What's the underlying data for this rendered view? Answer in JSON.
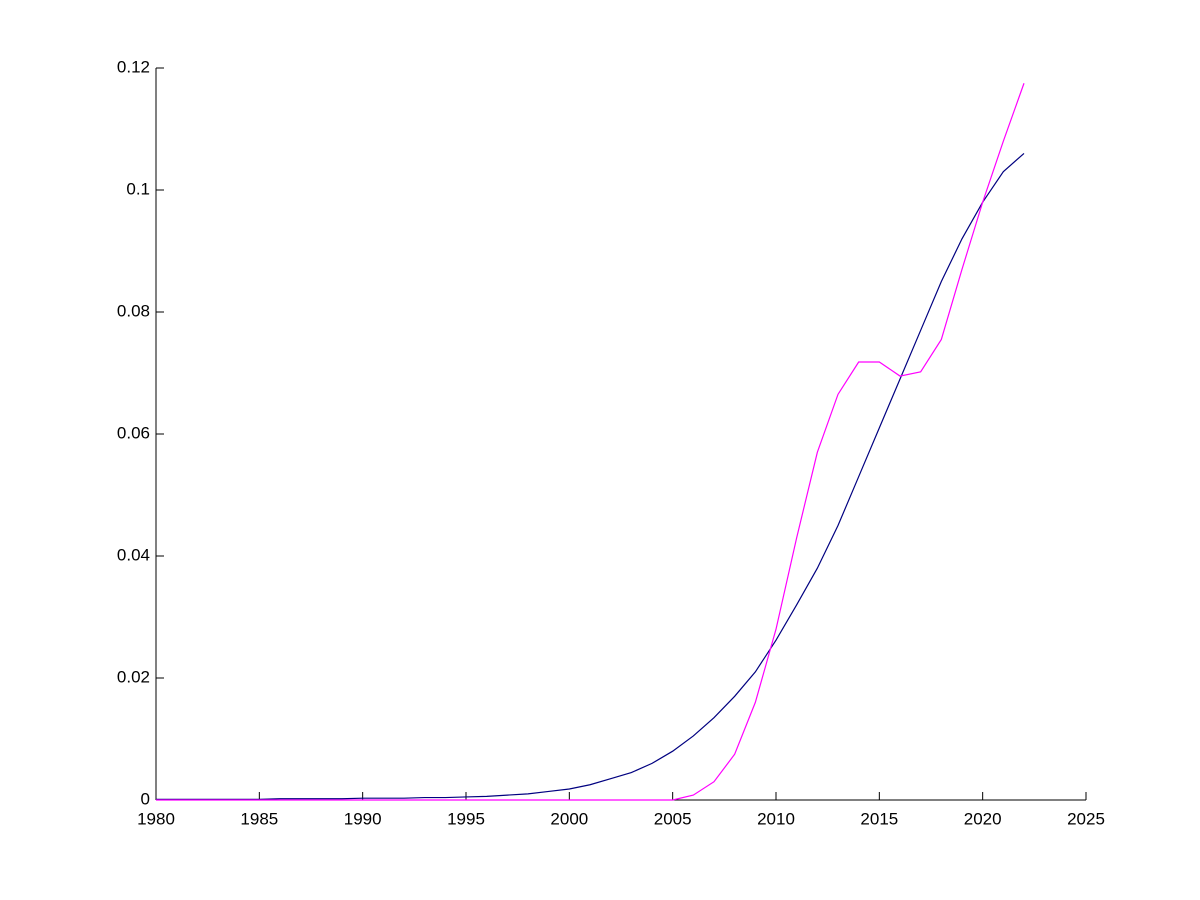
{
  "chart_data": {
    "type": "line",
    "x": [
      1980,
      1981,
      1982,
      1983,
      1984,
      1985,
      1986,
      1987,
      1988,
      1989,
      1990,
      1991,
      1992,
      1993,
      1994,
      1995,
      1996,
      1997,
      1998,
      1999,
      2000,
      2001,
      2002,
      2003,
      2004,
      2005,
      2006,
      2007,
      2008,
      2009,
      2010,
      2011,
      2012,
      2013,
      2014,
      2015,
      2016,
      2017,
      2018,
      2019,
      2020,
      2021,
      2022
    ],
    "series": [
      {
        "color": "#000080",
        "values": [
          0.0001,
          0.0001,
          0.0001,
          0.0001,
          0.0001,
          0.0001,
          0.0002,
          0.0002,
          0.0002,
          0.0002,
          0.0003,
          0.0003,
          0.0003,
          0.0004,
          0.0004,
          0.0005,
          0.0006,
          0.0008,
          0.001,
          0.0014,
          0.0018,
          0.0025,
          0.0035,
          0.0045,
          0.006,
          0.008,
          0.0105,
          0.0135,
          0.017,
          0.021,
          0.0262,
          0.032,
          0.038,
          0.045,
          0.053,
          0.061,
          0.069,
          0.077,
          0.085,
          0.092,
          0.098,
          0.103,
          0.106
        ]
      },
      {
        "color": "#ff00ff",
        "values": [
          0,
          0,
          0,
          0,
          0,
          0,
          0,
          0,
          0,
          0,
          0,
          0,
          0,
          0,
          0,
          0,
          0,
          0,
          0,
          0,
          0,
          0,
          0,
          0,
          0,
          0,
          0.0008,
          0.003,
          0.0075,
          0.016,
          0.028,
          0.043,
          0.057,
          0.0665,
          0.0718,
          0.0718,
          0.0695,
          0.0702,
          0.0755,
          0.087,
          0.098,
          0.108,
          0.1175
        ]
      }
    ],
    "xlim": [
      1980,
      2025
    ],
    "xticks": [
      1980,
      1985,
      1990,
      1995,
      2000,
      2005,
      2010,
      2015,
      2020,
      2025
    ],
    "ylim": [
      0,
      0.12
    ],
    "yticks": [
      0,
      0.02,
      0.04,
      0.06,
      0.08,
      0.1,
      0.12
    ]
  }
}
